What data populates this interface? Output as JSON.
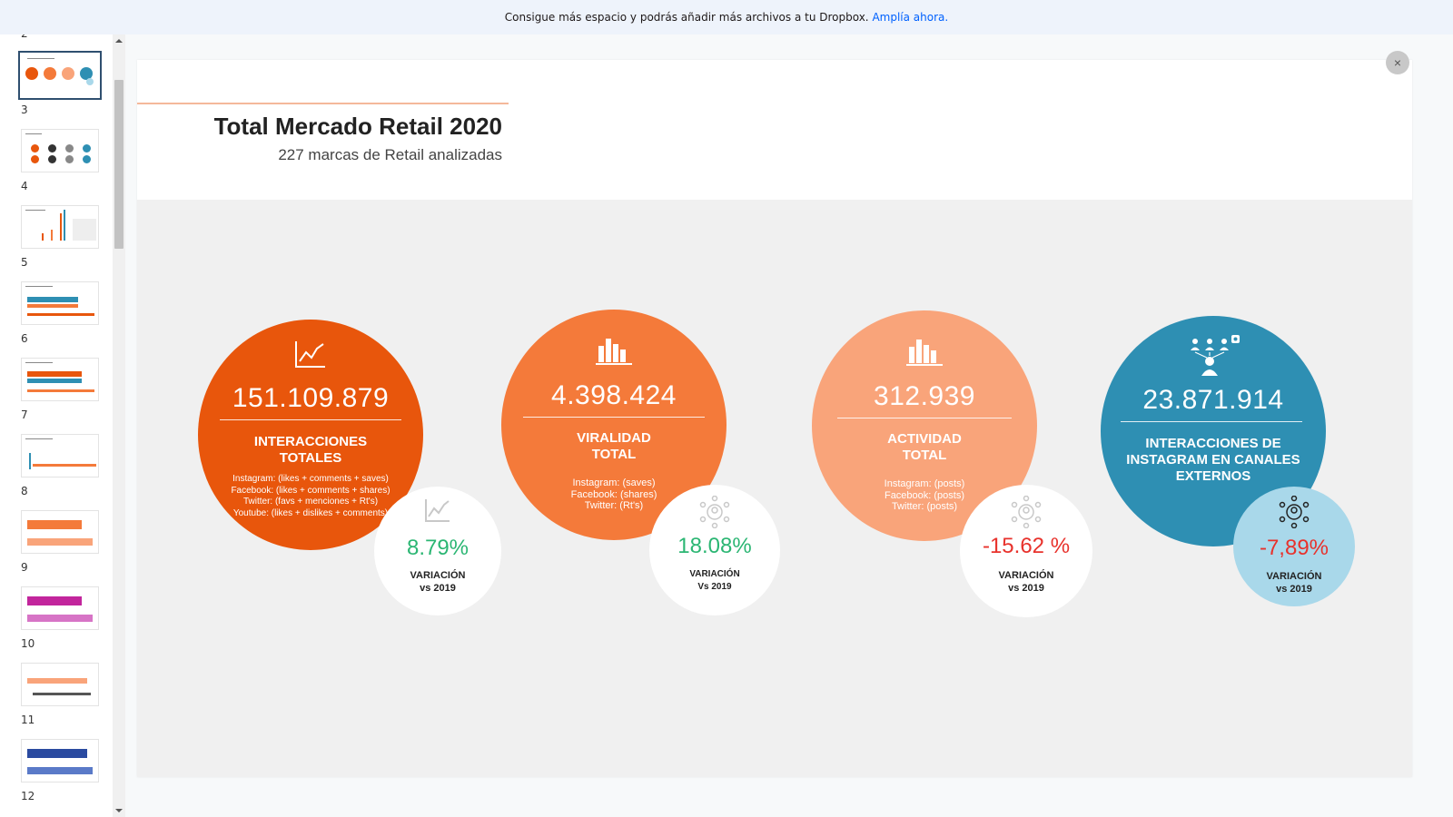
{
  "banner": {
    "text": "Consigue más espacio y podrás añadir más archivos a tu Dropbox.",
    "link": "Amplía ahora."
  },
  "sidebar": {
    "page_above": "2",
    "thumbnails": [
      {
        "label": "3",
        "selected": true
      },
      {
        "label": "4"
      },
      {
        "label": "5"
      },
      {
        "label": "6"
      },
      {
        "label": "7"
      },
      {
        "label": "8"
      },
      {
        "label": "9"
      },
      {
        "label": "10"
      },
      {
        "label": "11"
      },
      {
        "label": "12"
      }
    ]
  },
  "viewer": {
    "close_label": "×"
  },
  "slide": {
    "title": "Total Mercado Retail 2020",
    "subtitle": "227 marcas de Retail analizadas",
    "metrics": [
      {
        "value": "151.109.879",
        "title_line1": "INTERACCIONES",
        "title_line2": "TOTALES",
        "desc": [
          "Instagram: (likes + comments + saves)",
          "Facebook: (likes + comments + shares)",
          "Twitter: (favs + menciones + Rt's)",
          "Youtube: (likes + dislikes + comments)"
        ],
        "variation": "8.79%",
        "var_label_line1": "VARIACIÓN",
        "var_label_line2": "vs 2019",
        "color": "#e8560c",
        "variation_color": "#2bb673",
        "icon": "line-chart-icon"
      },
      {
        "value": "4.398.424",
        "title_line1": "VIRALIDAD",
        "title_line2": "TOTAL",
        "desc": [
          "Instagram: (saves)",
          "Facebook: (shares)",
          "Twitter: (Rt's)"
        ],
        "variation": "18.08%",
        "var_label_line1": "VARIACIÓN",
        "var_label_line2": "Vs 2019",
        "color": "#f47a3a",
        "variation_color": "#2bb673",
        "icon": "bar-chart-icon"
      },
      {
        "value": "312.939",
        "title_line1": "ACTIVIDAD",
        "title_line2": "TOTAL",
        "desc": [
          "Instagram: (posts)",
          "Facebook: (posts)",
          "Twitter: (posts)"
        ],
        "variation": "-15.62 %",
        "var_label_line1": "VARIACIÓN",
        "var_label_line2": "vs 2019",
        "color": "#f9a47a",
        "variation_color": "#e8322c",
        "icon": "bar-chart-icon"
      },
      {
        "value": "23.871.914",
        "title_line1": "INTERACCIONES DE",
        "title_line2": "INSTAGRAM EN CANALES",
        "title_line3": "EXTERNOS",
        "variation": "-7,89%",
        "var_label_line1": "VARIACIÓN",
        "var_label_line2": "vs 2019",
        "color": "#2e8fb3",
        "small_bg": "#a9d8ea",
        "variation_color": "#e8322c",
        "icon": "network-people-icon"
      }
    ]
  }
}
